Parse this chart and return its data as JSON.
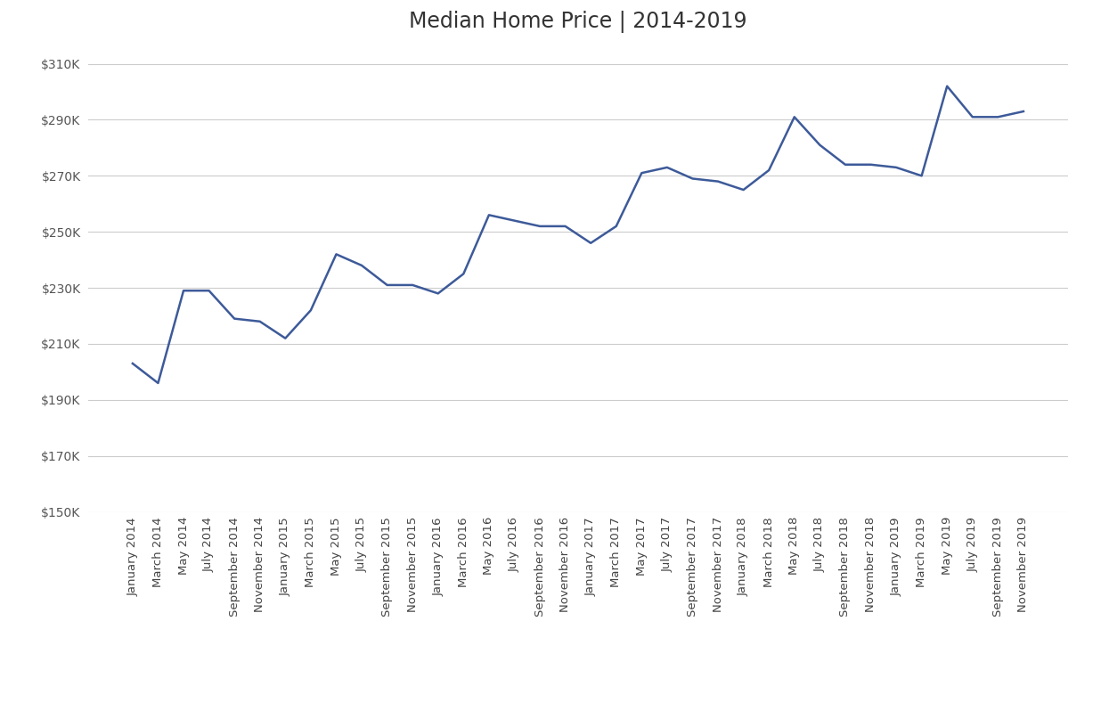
{
  "title": "Median Home Price | 2014-2019",
  "title_fontsize": 17,
  "line_color": "#3d5a99",
  "line_width": 1.8,
  "background_color": "#ffffff",
  "grid_color": "#cccccc",
  "ylim": [
    150000,
    315000
  ],
  "yticks": [
    150000,
    170000,
    190000,
    210000,
    230000,
    250000,
    270000,
    290000,
    310000
  ],
  "labels": [
    "January 2014",
    "March 2014",
    "May 2014",
    "July 2014",
    "September 2014",
    "November 2014",
    "January 2015",
    "March 2015",
    "May 2015",
    "July 2015",
    "September 2015",
    "November 2015",
    "January 2016",
    "March 2016",
    "May 2016",
    "July 2016",
    "September 2016",
    "November 2016",
    "January 2017",
    "March 2017",
    "May 2017",
    "July 2017",
    "September 2017",
    "November 2017",
    "January 2018",
    "March 2018",
    "May 2018",
    "July 2018",
    "September 2018",
    "November 2018",
    "January 2019",
    "March 2019",
    "May 2019",
    "July 2019",
    "September 2019",
    "November 2019"
  ],
  "values": [
    203000,
    196000,
    229000,
    229000,
    219000,
    218000,
    212000,
    222000,
    242000,
    238000,
    231000,
    231000,
    228000,
    235000,
    256000,
    254000,
    252000,
    252000,
    246000,
    252000,
    271000,
    273000,
    269000,
    268000,
    265000,
    272000,
    291000,
    281000,
    274000,
    274000,
    273000,
    270000,
    302000,
    291000,
    291000,
    293000
  ],
  "ylabel_color": "#555555",
  "xlabel_color": "#444444",
  "tick_label_fontsize": 9.5,
  "ytick_label_fontsize": 10
}
